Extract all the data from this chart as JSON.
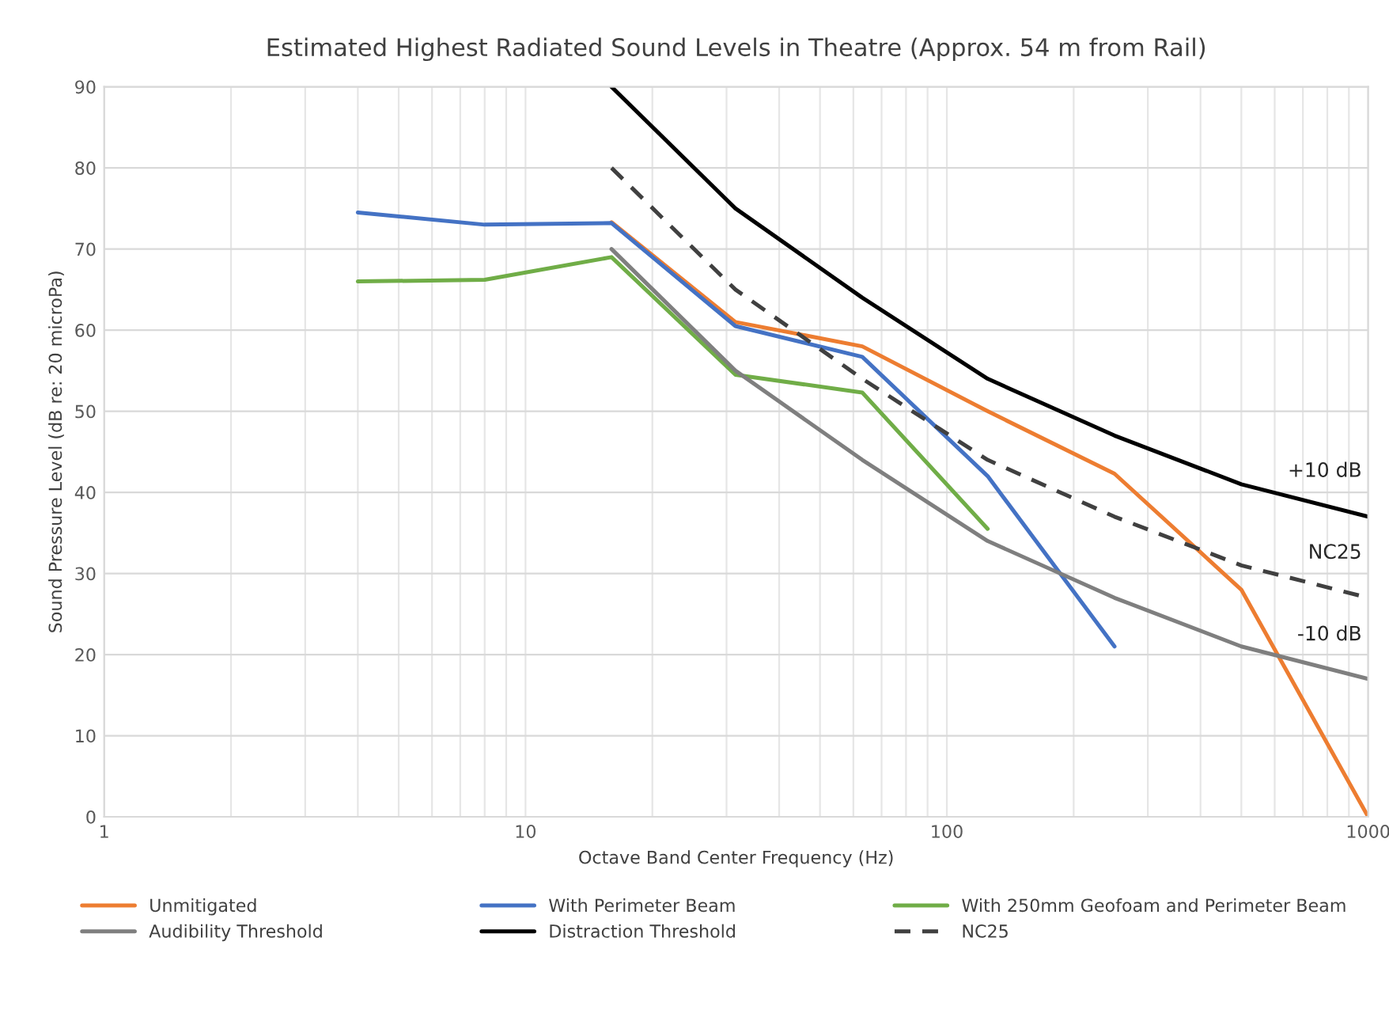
{
  "chart_data": {
    "type": "line",
    "title": "Estimated Highest Radiated Sound Levels in Theatre (Approx. 54 m from Rail)",
    "xlabel": "Octave Band Center Frequency (Hz)",
    "ylabel": "Sound Pressure Level (dB re: 20 microPa)",
    "log": "x",
    "xlim": [
      1,
      1000
    ],
    "xticks": [
      1,
      10,
      100,
      1000
    ],
    "ylim": [
      0,
      90
    ],
    "yticks": [
      0,
      10,
      20,
      30,
      40,
      50,
      60,
      70,
      80,
      90
    ],
    "grid": true,
    "legend": "bottom",
    "marker": "none",
    "series": [
      {
        "name": "Unmitigated",
        "color": "#ed7d31",
        "x": [
          16,
          31.5,
          63,
          125,
          250,
          500,
          1000
        ],
        "values": [
          73.3,
          61,
          58,
          50,
          42.3,
          28,
          0
        ]
      },
      {
        "name": "With Perimeter Beam",
        "color": "#4472c4",
        "x": [
          4,
          8,
          16,
          31.5,
          63,
          125,
          250
        ],
        "values": [
          74.5,
          73,
          73.2,
          60.5,
          56.7,
          42,
          21
        ]
      },
      {
        "name": "With 250mm Geofoam and Perimeter Beam",
        "color": "#70ad47",
        "x": [
          4,
          8,
          16,
          31.5,
          63,
          125
        ],
        "values": [
          66,
          66.2,
          69,
          54.5,
          52.3,
          35.5
        ]
      },
      {
        "name": "Audibility Threshold",
        "color": "#7f7f7f",
        "x": [
          16,
          31.5,
          63,
          125,
          250,
          500,
          1000
        ],
        "values": [
          70,
          55,
          44,
          34,
          27,
          21,
          17
        ]
      },
      {
        "name": "Distraction Threshold",
        "color": "#000000",
        "x": [
          16,
          31.5,
          63,
          125,
          250,
          500,
          1000
        ],
        "values": [
          90,
          75,
          64,
          54,
          47,
          41,
          37
        ]
      },
      {
        "name": "NC25",
        "color": "#404040",
        "line_style": "dashed",
        "x": [
          16,
          31.5,
          63,
          125,
          250,
          500,
          1000
        ],
        "values": [
          80,
          65,
          54,
          44,
          37,
          31,
          27
        ]
      }
    ],
    "annotations": [
      "+10 dB",
      "NC25",
      "-10 dB"
    ]
  }
}
